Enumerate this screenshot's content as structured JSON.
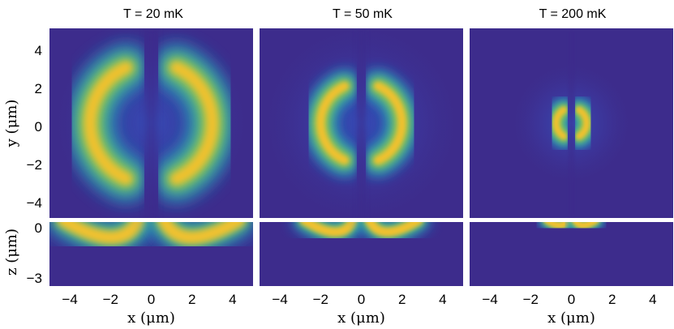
{
  "chart_data": {
    "type": "heatmap",
    "colormap": [
      "#3a2f8c",
      "#3c3ea8",
      "#2f66d8",
      "#1e8fd0",
      "#15b2b0",
      "#4bc27e",
      "#a8c444",
      "#f2c12f",
      "#fbd82a"
    ],
    "background_color": "#3d2c8c",
    "ylabel_top": "y (μm)",
    "ylabel_bottom": "z (μm)",
    "x_ticks": [
      "−4",
      "−2",
      "0",
      "2",
      "4"
    ],
    "y_ticks_top": [
      "4",
      "2",
      "0",
      "−2",
      "−4"
    ],
    "z_ticks_bottom": [
      "0",
      "−3"
    ],
    "xlim": [
      -5,
      5
    ],
    "ylim": [
      -5,
      5
    ],
    "zlim": [
      -3.3,
      0
    ],
    "panels": [
      {
        "title": "T = 20 mK",
        "xlabel": "x (μm)",
        "top_view": {
          "radius_um": 3.0,
          "ring_sigma_um": 0.85,
          "center_gap_um": 0.6,
          "outer_halo_um": 2.0
        },
        "side_view": {
          "shape": "arc",
          "x_peak_um": 2.5,
          "depth_um": 1.2
        }
      },
      {
        "title": "T = 50 mK",
        "xlabel": "x (μm)",
        "top_view": {
          "radius_um": 2.0,
          "ring_sigma_um": 0.6,
          "center_gap_um": 0.45,
          "outer_halo_um": 3.0
        },
        "side_view": {
          "shape": "arc",
          "x_peak_um": 1.6,
          "depth_um": 0.8
        }
      },
      {
        "title": "T = 200 mK",
        "xlabel": "x (μm)",
        "top_view": {
          "radius_um": 0.75,
          "ring_sigma_um": 0.45,
          "center_gap_um": 0.25,
          "outer_halo_um": 2.3
        },
        "side_view": {
          "shape": "arc",
          "x_peak_um": 0.75,
          "depth_um": 0.3
        }
      }
    ]
  }
}
